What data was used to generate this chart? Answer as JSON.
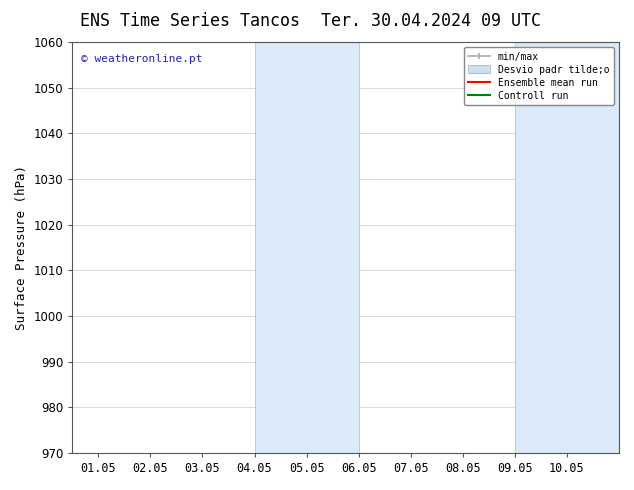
{
  "title_left": "ENS Time Series Tancos",
  "title_right": "Ter. 30.04.2024 09 UTC",
  "ylabel": "Surface Pressure (hPa)",
  "ylim": [
    970,
    1060
  ],
  "yticks": [
    970,
    980,
    990,
    1000,
    1010,
    1020,
    1030,
    1040,
    1050,
    1060
  ],
  "xtick_labels": [
    "01.05",
    "02.05",
    "03.05",
    "04.05",
    "05.05",
    "06.05",
    "07.05",
    "08.05",
    "09.05",
    "10.05"
  ],
  "xtick_positions": [
    0,
    1,
    2,
    3,
    4,
    5,
    6,
    7,
    8,
    9
  ],
  "xlim": [
    -0.5,
    10.0
  ],
  "shaded_bands": [
    {
      "xmin": 3.0,
      "xmax": 5.0
    },
    {
      "xmin": 8.0,
      "xmax": 10.0
    }
  ],
  "band_color": "#daeaf8",
  "band_edge_color": "#b0cce8",
  "watermark": "© weatheronline.pt",
  "watermark_color": "#2222bb",
  "legend_labels": [
    "min/max",
    "Desvio padr tilde;o",
    "Ensemble mean run",
    "Controll run"
  ],
  "legend_colors": [
    "#aaaaaa",
    "#cce0f0",
    "red",
    "green"
  ],
  "background_color": "#ffffff",
  "grid_color": "#cccccc",
  "title_fontsize": 12,
  "axis_fontsize": 9,
  "tick_fontsize": 8.5,
  "watermark_fontsize": 8
}
